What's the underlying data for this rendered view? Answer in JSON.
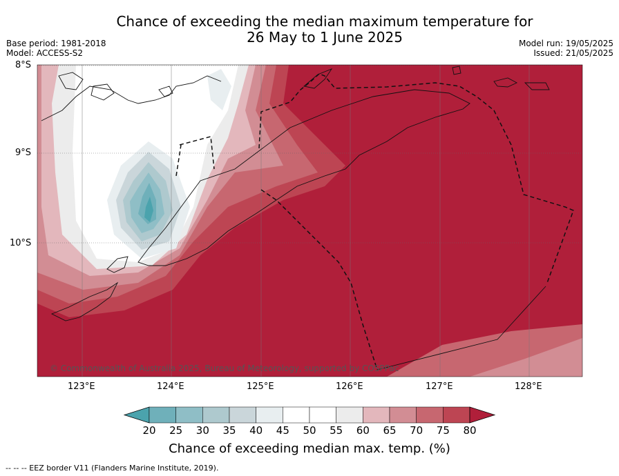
{
  "title_line1": "Chance of exceeding the median maximum temperature for",
  "title_line2": "26 May to 1 June 2025",
  "base_period": "Base period: 1981-2018",
  "model": "Model: ACCESS-S2",
  "model_run": "Model run: 19/05/2025",
  "issued": "Issued: 21/05/2025",
  "lat_labels": [
    "8°S",
    "9°S",
    "10°S"
  ],
  "lon_labels": [
    "123°E",
    "124°E",
    "125°E",
    "126°E",
    "127°E",
    "128°E"
  ],
  "colorbar": {
    "ticks": [
      "20",
      "25",
      "30",
      "35",
      "40",
      "45",
      "50",
      "55",
      "60",
      "65",
      "70",
      "75",
      "80"
    ],
    "title": "Chance of exceeding median max. temp. (%)",
    "colors": [
      "#4ba3ad",
      "#6fb0ba",
      "#8fbec6",
      "#aec9ce",
      "#cad6da",
      "#e8eef0",
      "#ffffff",
      "#ffffff",
      "#ececec",
      "#e3b7bc",
      "#d28d94",
      "#c76770",
      "#bd4553",
      "#b01f3a"
    ]
  },
  "copyright": "© Commonwealth of Australia 2025, Bureau of Meteorology, supported by COSPPac",
  "footer": "-- -- -- EEZ border V11 (Flanders Marine Institute, 2019)."
}
